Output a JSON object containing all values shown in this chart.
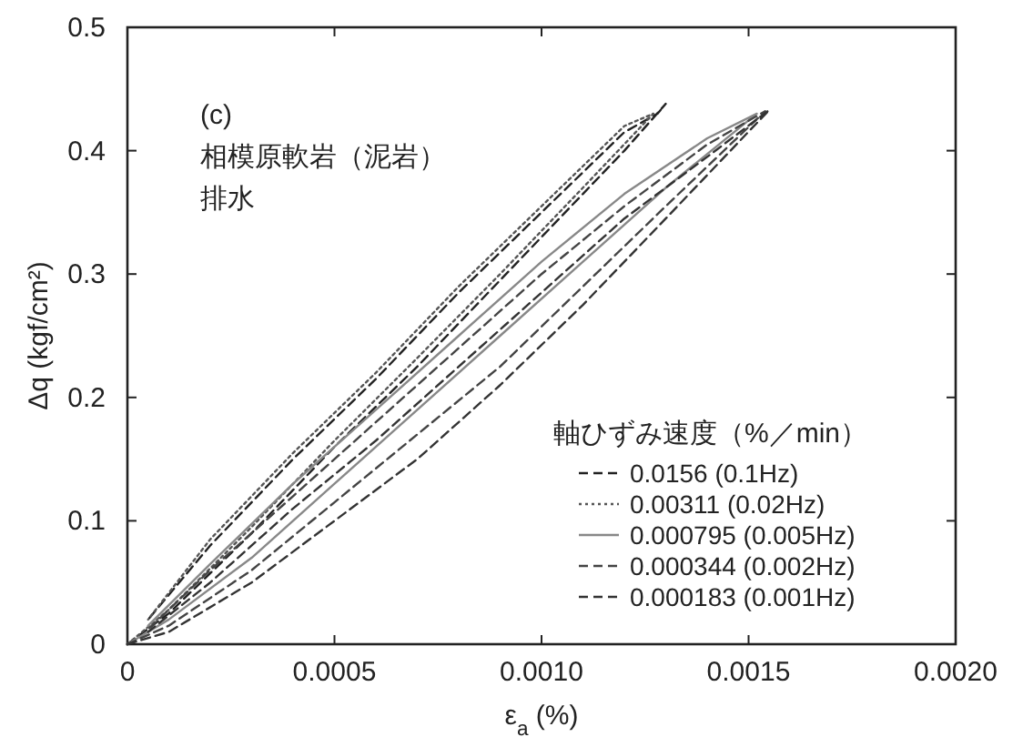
{
  "chart_data": {
    "type": "line",
    "xlabel": "ε$_{a}$ (%)",
    "ylabel": "Δq (kgf/cm²)",
    "legend_title": "軸ひずみ速度（%／min）",
    "annotations": [
      "(c)",
      "相模原軟岩（泥岩）",
      "排水"
    ],
    "xlim": [
      0,
      0.002
    ],
    "xticks": [
      0,
      0.0005,
      {
        "value": 0.001,
        "label": "0.0010"
      },
      0.0015,
      {
        "value": 0.002,
        "label": "0.0020"
      }
    ],
    "ylim": [
      0,
      0.5
    ],
    "yticks": [
      0,
      0.1,
      0.2,
      0.3,
      0.4,
      0.5
    ],
    "grid": false,
    "legend": "bottom right",
    "series": [
      {
        "name": "0.0156 (0.1Hz)",
        "color": "#222222",
        "line_style": "dashed",
        "x": [
          0,
          0.0001,
          0.0003,
          0.0005,
          0.0007,
          0.0009,
          0.0011,
          0.0012,
          0.0013,
          0.00128,
          0.0012,
          0.001,
          0.0008,
          0.0006,
          0.0004,
          0.0002,
          5e-05
        ],
        "values": [
          0,
          0.025,
          0.09,
          0.16,
          0.225,
          0.295,
          0.365,
          0.4,
          0.438,
          0.43,
          0.415,
          0.35,
          0.285,
          0.215,
          0.15,
          0.08,
          0.02
        ]
      },
      {
        "name": "0.00311 (0.02Hz)",
        "color": "#555555",
        "line_style": "dotted",
        "x": [
          0,
          0.0001,
          0.0003,
          0.0005,
          0.0007,
          0.0009,
          0.0011,
          0.00127,
          0.0012,
          0.001,
          0.0008,
          0.0006,
          0.0004,
          0.0002,
          5e-05
        ],
        "values": [
          0,
          0.028,
          0.095,
          0.165,
          0.232,
          0.3,
          0.37,
          0.43,
          0.42,
          0.355,
          0.29,
          0.22,
          0.155,
          0.085,
          0.02
        ]
      },
      {
        "name": "0.000795 (0.005Hz)",
        "color": "#888888",
        "line_style": "solid",
        "x": [
          0,
          0.0001,
          0.0003,
          0.0005,
          0.0007,
          0.0009,
          0.0011,
          0.0013,
          0.00152,
          0.0014,
          0.0012,
          0.001,
          0.0008,
          0.0006,
          0.0004,
          0.0002,
          5e-05
        ],
        "values": [
          0,
          0.02,
          0.07,
          0.13,
          0.19,
          0.25,
          0.31,
          0.37,
          0.43,
          0.41,
          0.365,
          0.31,
          0.25,
          0.19,
          0.13,
          0.065,
          0.015
        ]
      },
      {
        "name": "0.000344 (0.002Hz)",
        "color": "#444444",
        "line_style": "dashed",
        "x": [
          0,
          0.0001,
          0.0003,
          0.0005,
          0.0007,
          0.0009,
          0.0011,
          0.0013,
          0.00154,
          0.0014,
          0.0012,
          0.001,
          0.0008,
          0.0006,
          0.0004,
          0.0002,
          5e-05
        ],
        "values": [
          0,
          0.015,
          0.06,
          0.115,
          0.17,
          0.225,
          0.29,
          0.355,
          0.432,
          0.405,
          0.355,
          0.3,
          0.24,
          0.18,
          0.12,
          0.06,
          0.012
        ]
      },
      {
        "name": "0.000183 (0.001Hz)",
        "color": "#333333",
        "line_style": "dashed",
        "x": [
          0,
          0.0001,
          0.0003,
          0.0005,
          0.0007,
          0.0009,
          0.0011,
          0.0013,
          0.00155,
          0.0014,
          0.0012,
          0.001,
          0.0008,
          0.0006,
          0.0004,
          0.0002,
          5e-05
        ],
        "values": [
          0,
          0.01,
          0.05,
          0.1,
          0.15,
          0.21,
          0.275,
          0.345,
          0.433,
          0.395,
          0.345,
          0.285,
          0.225,
          0.165,
          0.11,
          0.05,
          0.01
        ]
      }
    ]
  }
}
